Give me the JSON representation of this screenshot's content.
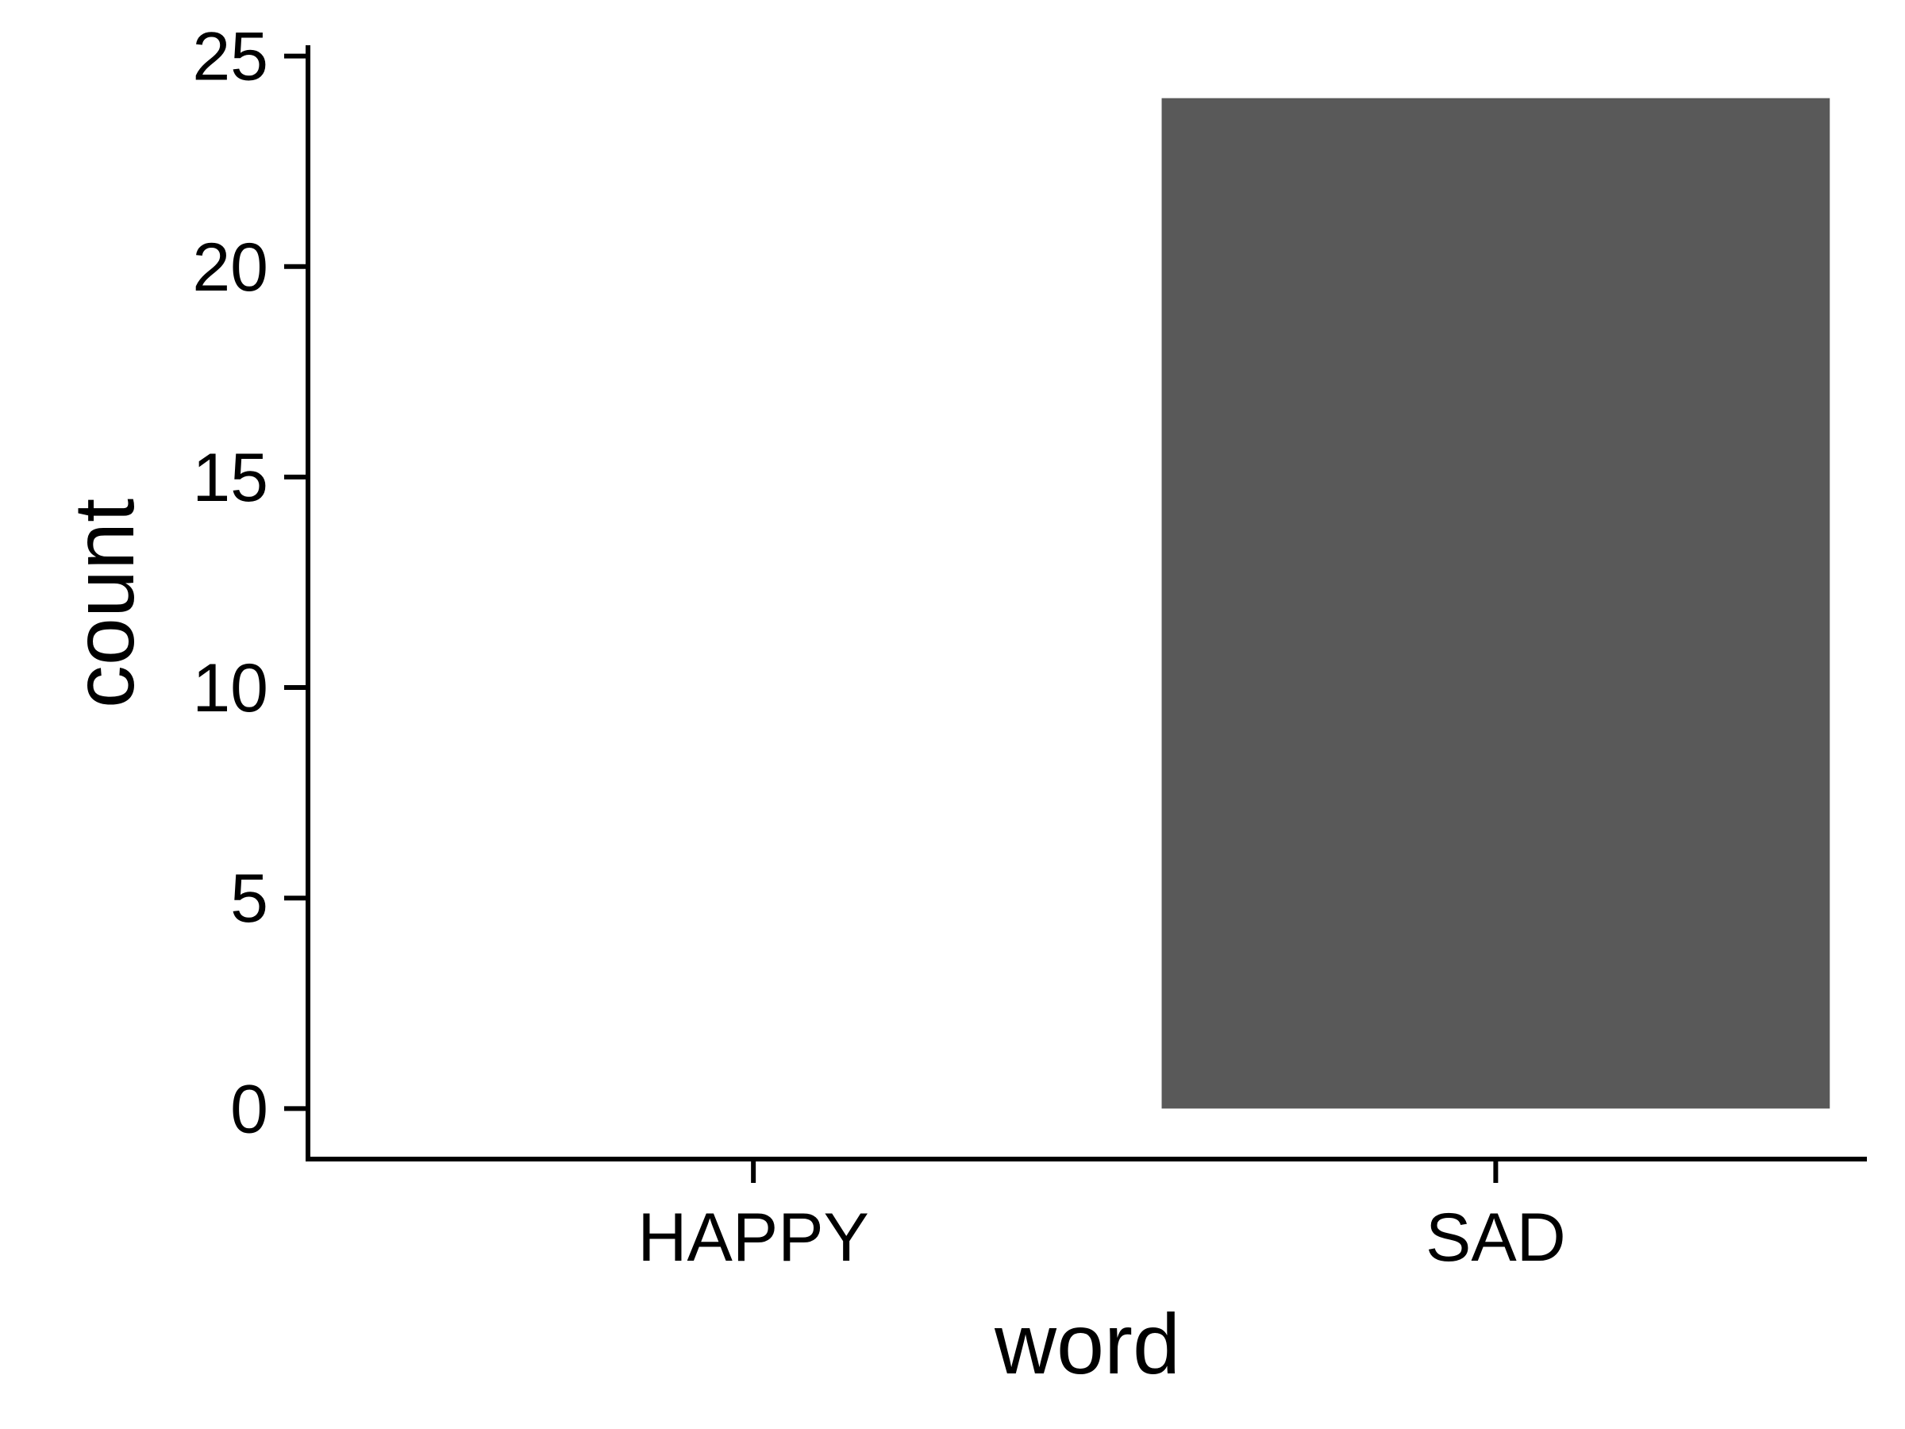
{
  "chart_data": {
    "type": "bar",
    "categories": [
      "HAPPY",
      "SAD"
    ],
    "values": [
      0,
      24
    ],
    "title": "",
    "xlabel": "word",
    "ylabel": "count",
    "ylim": [
      -1.2,
      25.2
    ],
    "yticks": [
      0,
      5,
      10,
      15,
      20,
      25
    ],
    "grid": false,
    "legend": "none",
    "colors": {
      "bar": "#595959",
      "axis": "#000000",
      "background": "#ffffff"
    }
  }
}
